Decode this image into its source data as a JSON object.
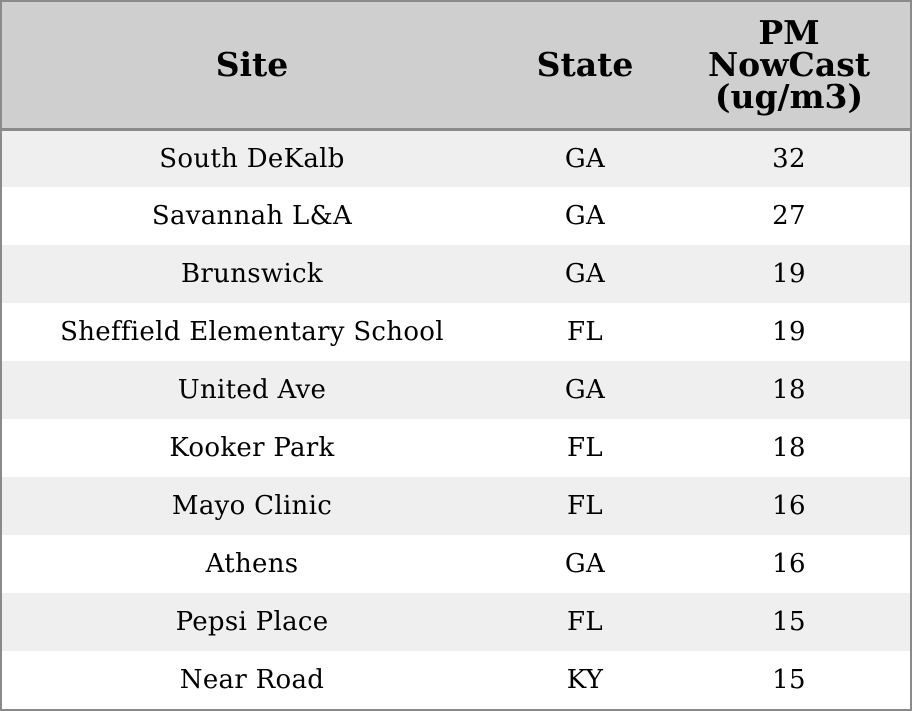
{
  "chart_data": {
    "type": "table",
    "columns": [
      "Site",
      "State",
      "PM NowCast (ug/m3)"
    ],
    "header_lines": [
      [
        "Site"
      ],
      [
        "State"
      ],
      [
        "PM",
        "NowCast",
        "(ug/m3)"
      ]
    ],
    "rows": [
      {
        "site": "South DeKalb",
        "state": "GA",
        "pm": 32
      },
      {
        "site": "Savannah L&A",
        "state": "GA",
        "pm": 27
      },
      {
        "site": "Brunswick",
        "state": "GA",
        "pm": 19
      },
      {
        "site": "Sheffield Elementary School",
        "state": "FL",
        "pm": 19
      },
      {
        "site": "United Ave",
        "state": "GA",
        "pm": 18
      },
      {
        "site": "Kooker Park",
        "state": "FL",
        "pm": 18
      },
      {
        "site": "Mayo Clinic",
        "state": "FL",
        "pm": 16
      },
      {
        "site": "Athens",
        "state": "GA",
        "pm": 16
      },
      {
        "site": "Pepsi Place",
        "state": "FL",
        "pm": 15
      },
      {
        "site": "Near Road",
        "state": "KY",
        "pm": 15
      }
    ]
  },
  "colors": {
    "header_bg": "#cfcfcf",
    "row_shaded": "#efefef",
    "row_plain": "#ffffff",
    "border": "#8a8a8a"
  }
}
